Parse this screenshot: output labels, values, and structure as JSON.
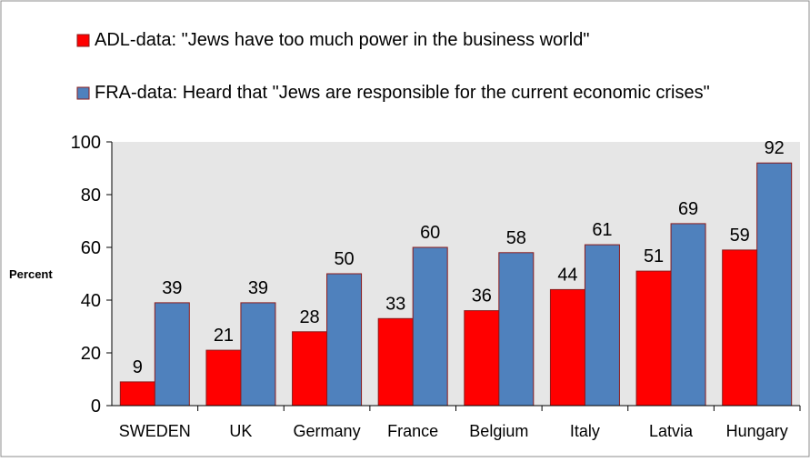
{
  "chart_data": {
    "type": "bar",
    "title": "",
    "xlabel": "",
    "ylabel": "Percent",
    "ylim": [
      0,
      100
    ],
    "y_ticks": [
      0,
      20,
      40,
      60,
      80,
      100
    ],
    "grid": false,
    "legend_position": "top",
    "plot_background": "#e6e6e6",
    "categories": [
      "SWEDEN",
      "UK",
      "Germany",
      "France",
      "Belgium",
      "Italy",
      "Latvia",
      "Hungary"
    ],
    "series": [
      {
        "name": "ADL-data: \"Jews have too much power in the business world\"",
        "color": "#ff0000",
        "values": [
          9,
          21,
          28,
          33,
          36,
          44,
          51,
          59
        ]
      },
      {
        "name": "FRA-data: Heard that \"Jews are responsible for the current economic crises\"",
        "color": "#4f81bd",
        "values": [
          39,
          39,
          50,
          60,
          58,
          61,
          69,
          92
        ]
      }
    ]
  }
}
